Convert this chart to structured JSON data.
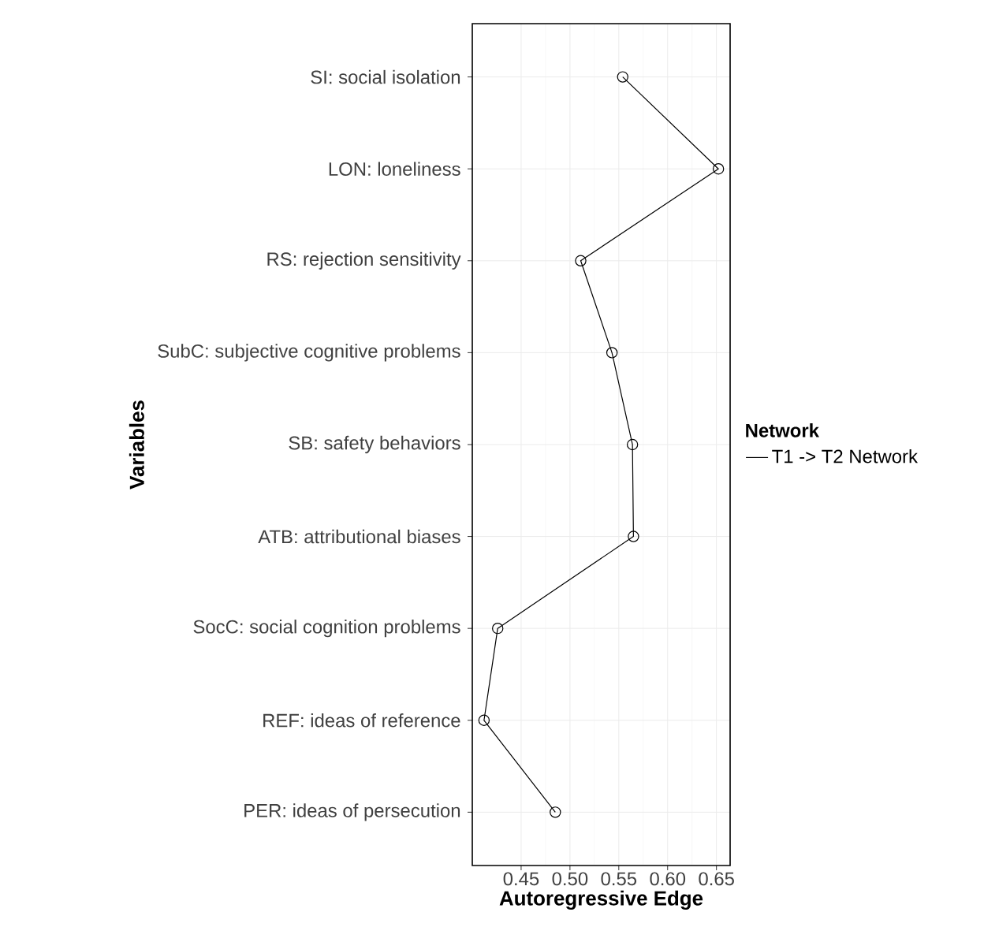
{
  "chart_data": {
    "type": "line",
    "orientation": "horizontal",
    "xlabel": "Autoregressive Edge",
    "ylabel": "Variables",
    "legend_title": "Network",
    "categories": [
      "SI: social isolation",
      "LON: loneliness",
      "RS: rejection sensitivity",
      "SubC: subjective cognitive problems",
      "SB: safety behaviors",
      "ATB: attributional biases",
      "SocC: social cognition problems",
      "REF: ideas of reference",
      "PER: ideas of persecution"
    ],
    "series": [
      {
        "name": "T1 -> T2 Network",
        "color": "#000000",
        "values": [
          0.554,
          0.652,
          0.511,
          0.543,
          0.564,
          0.565,
          0.426,
          0.412,
          0.485
        ]
      }
    ],
    "xlim": [
      0.4,
      0.664
    ],
    "xticks": [
      0.45,
      {
        "value": 0.5,
        "label": "0.50"
      },
      0.55,
      {
        "value": 0.6,
        "label": "0.60"
      },
      0.65
    ],
    "grid": true,
    "legend": "right",
    "marker": "circle"
  }
}
